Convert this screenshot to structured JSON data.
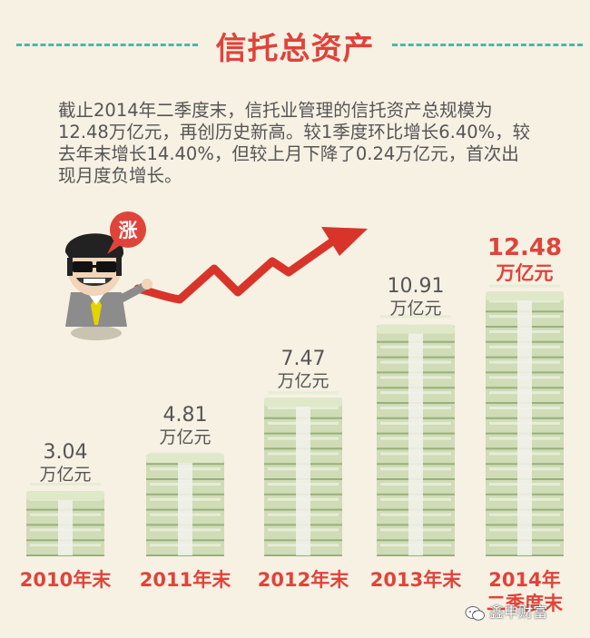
{
  "header": {
    "title": "信托总资产"
  },
  "intro": {
    "line1": "截止2014年二季度末，信托业管理的信托资产总规模为",
    "line2": "12.48万亿元，再创历史新高。较1季度环比增长6.40%，较",
    "line3": "去年末增长14.40%，但较上月下降了0.24万亿元，首次出",
    "line4": "现月度负增长。"
  },
  "mascot": {
    "bubble_text": "涨"
  },
  "watermark": {
    "text": "鑫申财富",
    "icon": "wechat-icon"
  },
  "colors": {
    "accent": "#e0433a",
    "dash": "#4fb6a7",
    "money_light": "#cfdcb6",
    "money_dark": "#98b07c",
    "band": "#f1f1ea",
    "arrow": "#d9342a"
  },
  "chart_data": {
    "type": "bar",
    "categories": [
      "2010年末",
      "2011年末",
      "2012年末",
      "2013年末",
      "2014年二季度末"
    ],
    "category_lines": [
      [
        "2010年末"
      ],
      [
        "2011年末"
      ],
      [
        "2012年末"
      ],
      [
        "2013年末"
      ],
      [
        "2014年",
        "二季度末"
      ]
    ],
    "values": [
      3.04,
      4.81,
      7.47,
      10.91,
      12.48
    ],
    "value_labels": [
      "3.04",
      "4.81",
      "7.47",
      "10.91",
      "12.48"
    ],
    "unit": "万亿元",
    "highlight_last": true,
    "title": "",
    "xlabel": "",
    "ylabel": ""
  }
}
